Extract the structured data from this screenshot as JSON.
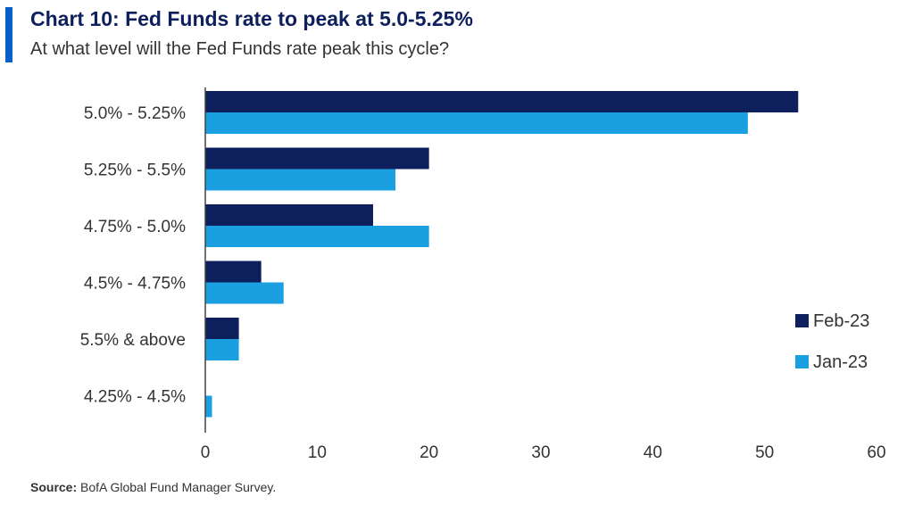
{
  "header": {
    "title": "Chart 10: Fed Funds rate to peak at 5.0-5.25%",
    "subtitle": "At what level will the Fed Funds rate peak this cycle?"
  },
  "footer": {
    "source_label": "Source:",
    "source_text": "BofA Global Fund Manager Survey."
  },
  "colors": {
    "accent": "#0a5ec8",
    "feb": "#0d1f5c",
    "jan": "#1a9fe0"
  },
  "chart_data": {
    "type": "bar",
    "orientation": "horizontal",
    "categories": [
      "5.0% - 5.25%",
      "5.25% - 5.5%",
      "4.75% - 5.0%",
      "4.5% - 4.75%",
      "5.5% & above",
      "4.25% - 4.5%"
    ],
    "series": [
      {
        "name": "Feb-23",
        "color": "#0d1f5c",
        "values": [
          53,
          20,
          15,
          5,
          3,
          0
        ]
      },
      {
        "name": "Jan-23",
        "color": "#1a9fe0",
        "values": [
          48.5,
          17,
          20,
          7,
          3,
          0.6
        ]
      }
    ],
    "xlim": [
      0,
      60
    ],
    "xticks": [
      0,
      10,
      20,
      30,
      40,
      50,
      60
    ],
    "grid": false,
    "legend": "right"
  }
}
